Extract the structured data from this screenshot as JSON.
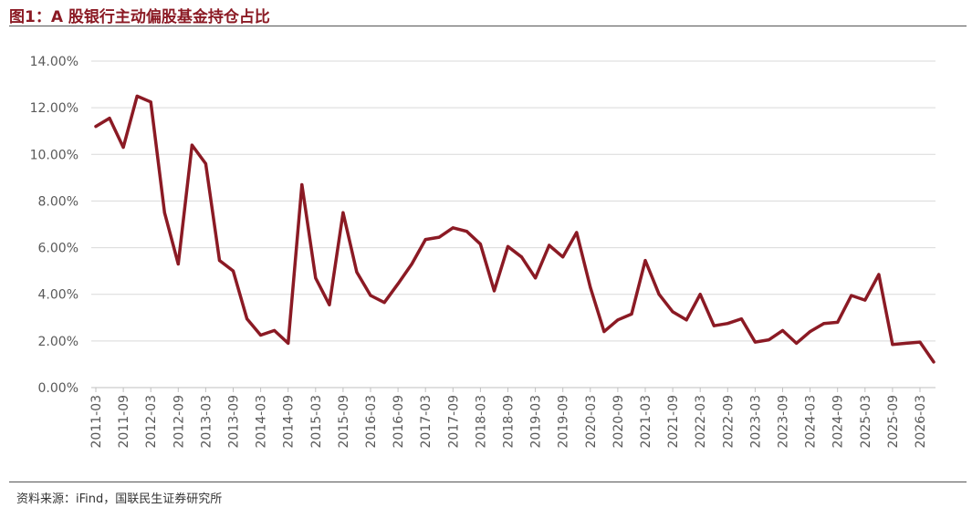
{
  "header": {
    "title": "图1：A 股银行主动偏股基金持仓占比"
  },
  "footer": {
    "source": "资料来源：iFind，国联民生证券研究所",
    "note": ""
  },
  "chart_data": {
    "type": "line",
    "title": "",
    "xlabel": "",
    "ylabel": "",
    "ylim": [
      0,
      14
    ],
    "y_ticks": [
      "0.00%",
      "2.00%",
      "4.00%",
      "6.00%",
      "8.00%",
      "10.00%",
      "12.00%",
      "14.00%"
    ],
    "grid": true,
    "line_color": "#8B1A24",
    "x_tick_labels": [
      "2011-03",
      "2011-09",
      "2012-03",
      "2012-09",
      "2013-03",
      "2013-09",
      "2014-03",
      "2014-09",
      "2015-03",
      "2015-09",
      "2016-03",
      "2016-09",
      "2017-03",
      "2017-09",
      "2018-03",
      "2018-09",
      "2019-03",
      "2019-09",
      "2020-03",
      "2020-09",
      "2021-03",
      "2021-09",
      "2022-03",
      "2022-09",
      "2023-03",
      "2023-09",
      "2024-03",
      "2024-09",
      "2025-03",
      "2025-09",
      "2026-03"
    ],
    "x": [
      "2011-03",
      "2011-06",
      "2011-09",
      "2011-12",
      "2012-03",
      "2012-06",
      "2012-09",
      "2012-12",
      "2013-03",
      "2013-06",
      "2013-09",
      "2013-12",
      "2014-03",
      "2014-06",
      "2014-09",
      "2014-12",
      "2015-03",
      "2015-06",
      "2015-09",
      "2015-12",
      "2016-03",
      "2016-06",
      "2016-09",
      "2016-12",
      "2017-03",
      "2017-06",
      "2017-09",
      "2017-12",
      "2018-03",
      "2018-06",
      "2018-09",
      "2018-12",
      "2019-03",
      "2019-06",
      "2019-09",
      "2019-12",
      "2020-03",
      "2020-06",
      "2020-09",
      "2020-12",
      "2021-03",
      "2021-06",
      "2021-09",
      "2021-12",
      "2022-03",
      "2022-06",
      "2022-09",
      "2022-12",
      "2023-03",
      "2023-06",
      "2023-09",
      "2023-12",
      "2024-03",
      "2024-06",
      "2024-09",
      "2024-12",
      "2025-03",
      "2025-06",
      "2025-09",
      "2025-12",
      "2026-03"
    ],
    "series": [
      {
        "name": "",
        "values": [
          11.2,
          11.55,
          10.3,
          12.5,
          12.25,
          7.5,
          5.3,
          10.4,
          9.6,
          5.45,
          5.0,
          2.95,
          2.25,
          2.45,
          1.9,
          8.7,
          4.7,
          3.55,
          7.5,
          4.95,
          3.95,
          3.65,
          4.45,
          5.3,
          6.35,
          6.45,
          6.85,
          6.7,
          6.15,
          4.15,
          6.05,
          5.6,
          4.7,
          6.1,
          5.6,
          6.65,
          4.3,
          2.4,
          2.9,
          3.15,
          5.45,
          4.0,
          3.25,
          2.9,
          4.0,
          2.65,
          2.75,
          2.95,
          1.95,
          2.05,
          2.45,
          1.9,
          2.4,
          2.75,
          2.8,
          3.95,
          3.75,
          4.85,
          1.85,
          1.9,
          1.95
        ]
      }
    ],
    "trailing_value": 1.1
  }
}
